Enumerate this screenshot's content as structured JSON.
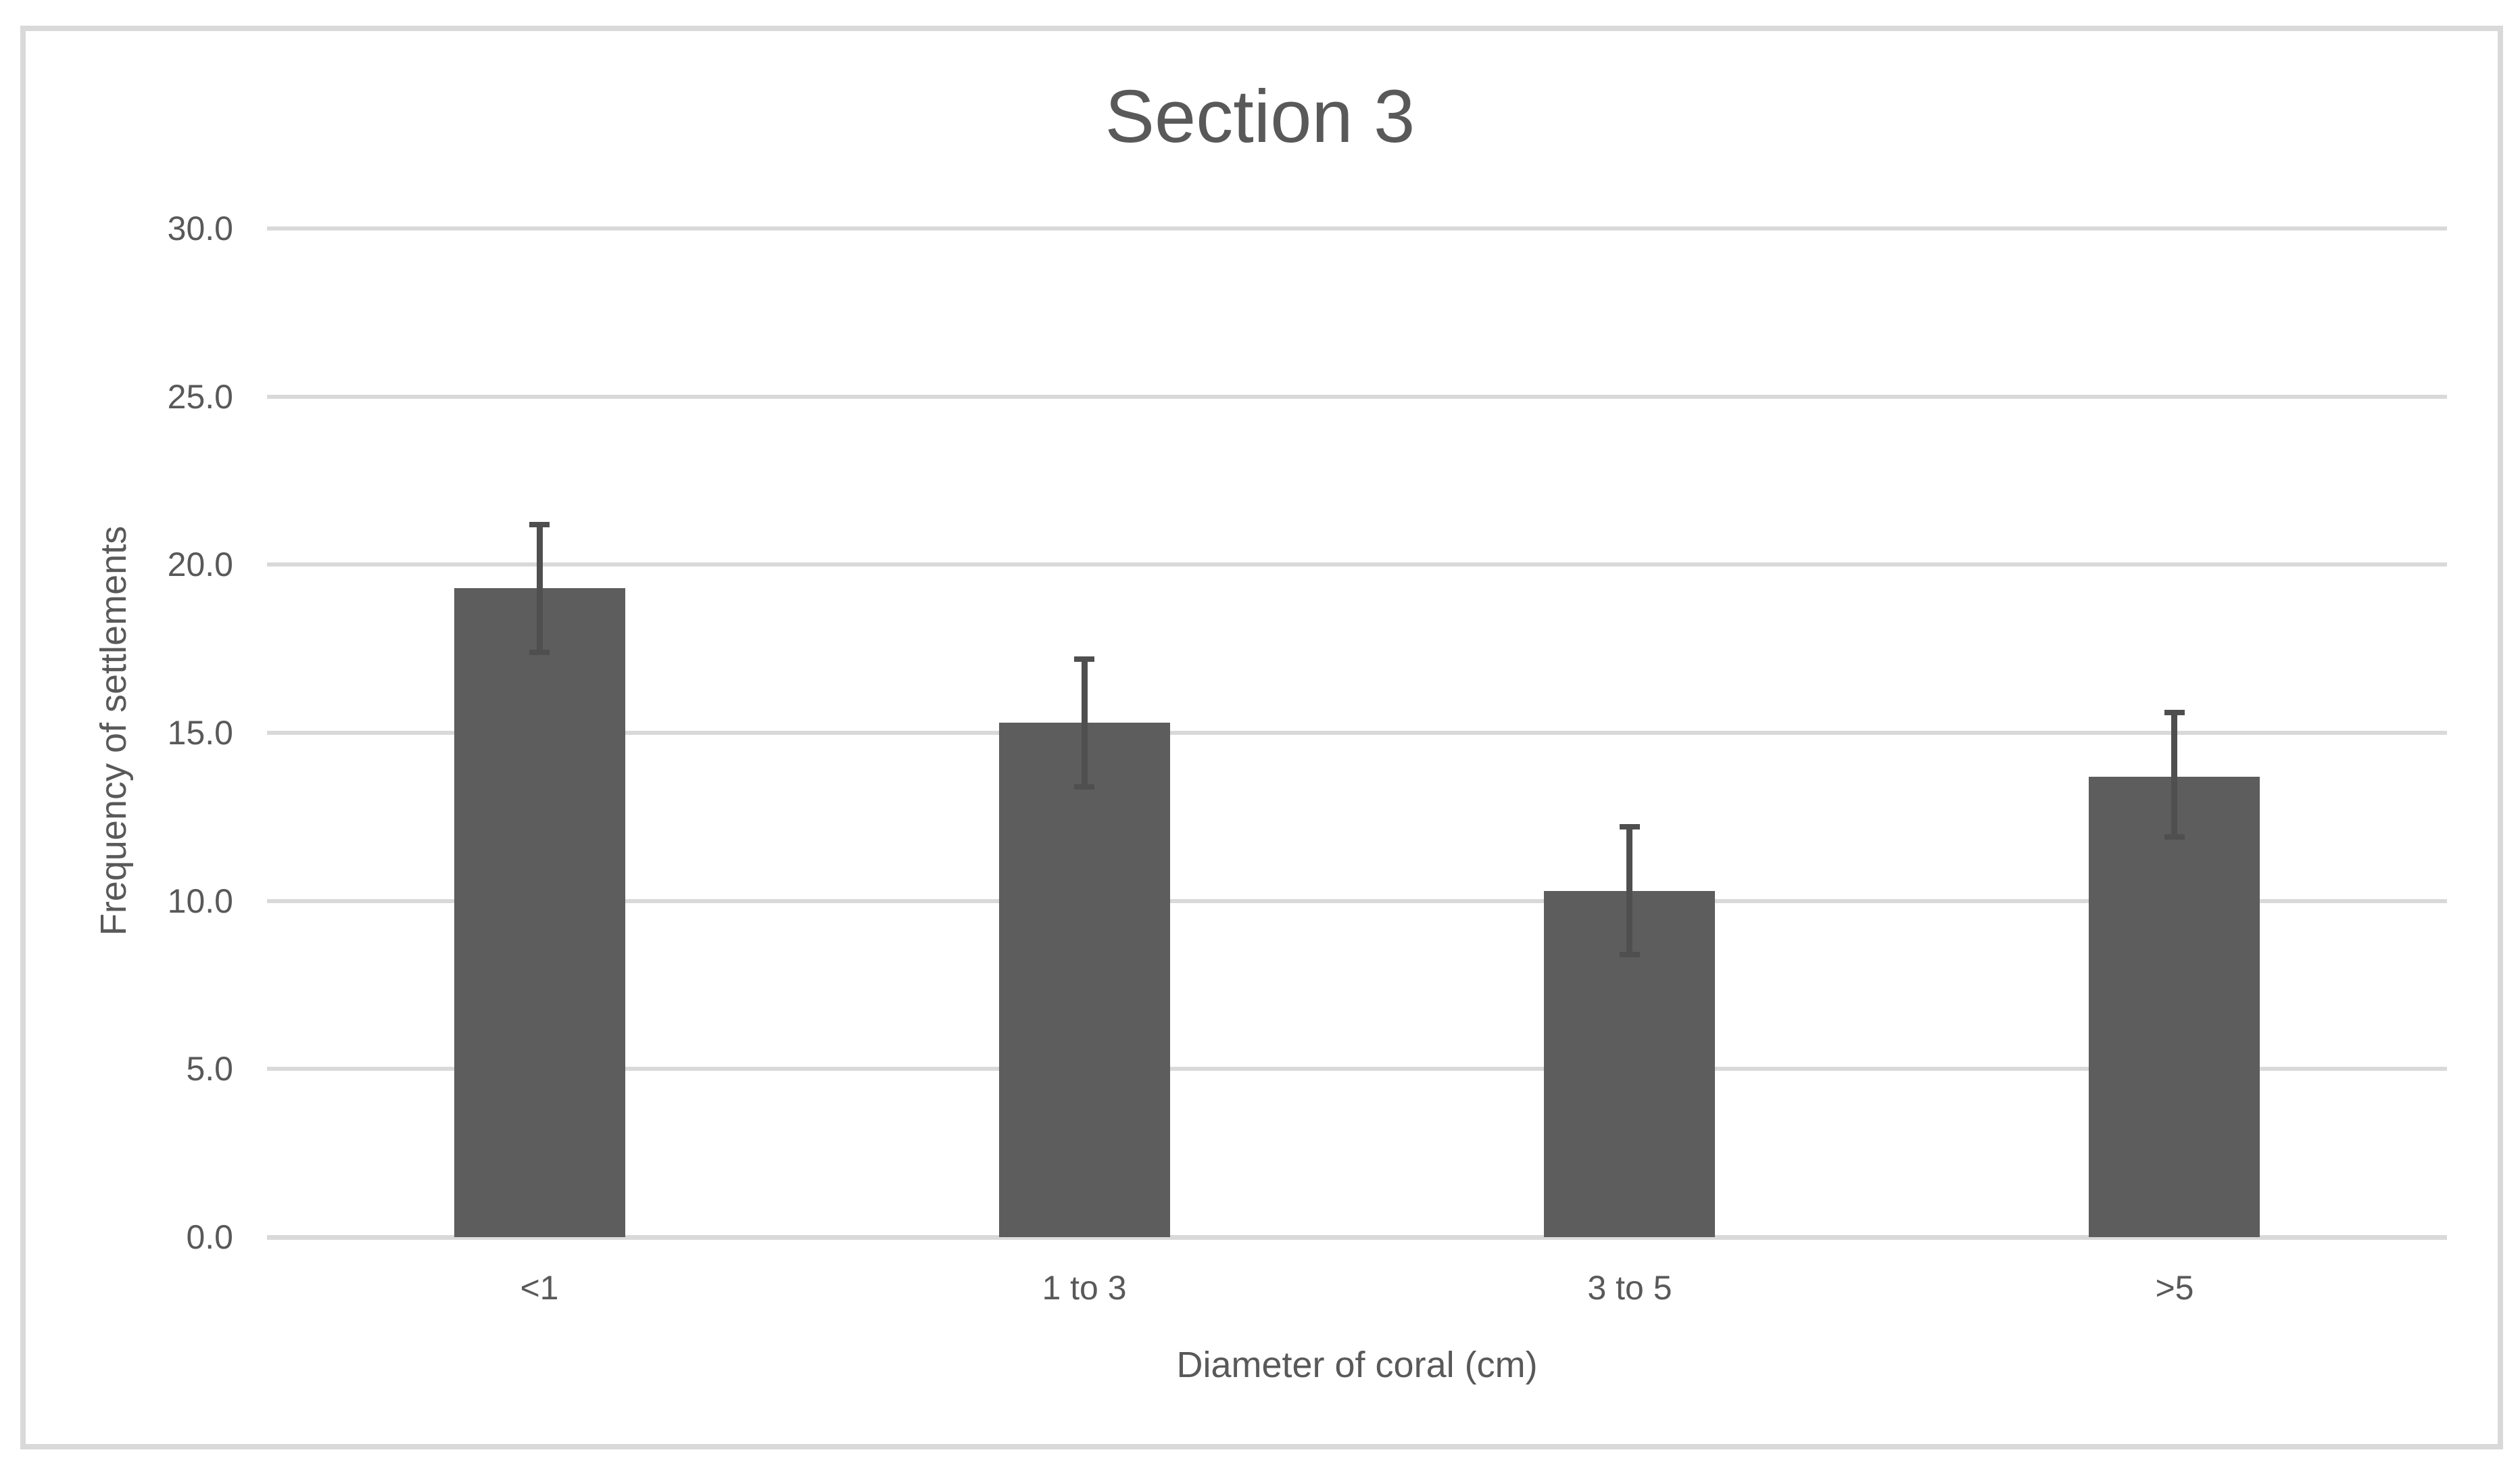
{
  "chart_data": {
    "type": "bar",
    "title": "Section 3",
    "categories": [
      "<1",
      "1 to 3",
      "3 to 5",
      ">5"
    ],
    "values": [
      19.3,
      15.3,
      10.3,
      13.7
    ],
    "error_upper": [
      21.2,
      17.2,
      12.2,
      15.6
    ],
    "error_lower": [
      17.4,
      13.4,
      8.4,
      11.9
    ],
    "xlabel": "Diameter of coral (cm)",
    "ylabel": "Frequency of settlements",
    "ylim": [
      0,
      30
    ],
    "ytick_step": 5,
    "ytick_labels": [
      "0.0",
      "5.0",
      "10.0",
      "15.0",
      "20.0",
      "25.0",
      "30.0"
    ],
    "grid": true,
    "legend": false
  },
  "colors": {
    "bar": "#5D5D5D",
    "error_bar": "#4F4F4F",
    "gridline": "#D9D9D9",
    "axis_line": "#D9D9D9",
    "text": "#595959",
    "frame_border": "#D9D9D9",
    "background": "#FFFFFF"
  }
}
